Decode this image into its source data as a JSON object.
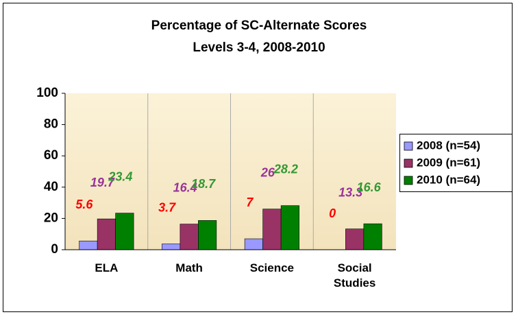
{
  "chart_data": {
    "type": "bar",
    "title": "Percentage of SC-Alternate Scores",
    "subtitle": "Levels 3-4, 2008-2010",
    "categories": [
      "ELA",
      "Math",
      "Science",
      "Social Studies"
    ],
    "series": [
      {
        "name": "2008 (n=54)",
        "color": "#9999ff",
        "label_color": "#ff0000",
        "values": [
          5.6,
          3.7,
          7,
          0
        ]
      },
      {
        "name": "2009 (n=61)",
        "color": "#993366",
        "label_color": "#993399",
        "values": [
          19.7,
          16.4,
          26,
          13.3
        ]
      },
      {
        "name": "2010 (n=64)",
        "color": "#008000",
        "label_color": "#339933",
        "values": [
          23.4,
          18.7,
          28.2,
          16.6
        ]
      }
    ],
    "ylim": [
      0,
      100
    ],
    "yticks": [
      0,
      20,
      40,
      60,
      80,
      100
    ],
    "grid": false,
    "legend": "right"
  }
}
